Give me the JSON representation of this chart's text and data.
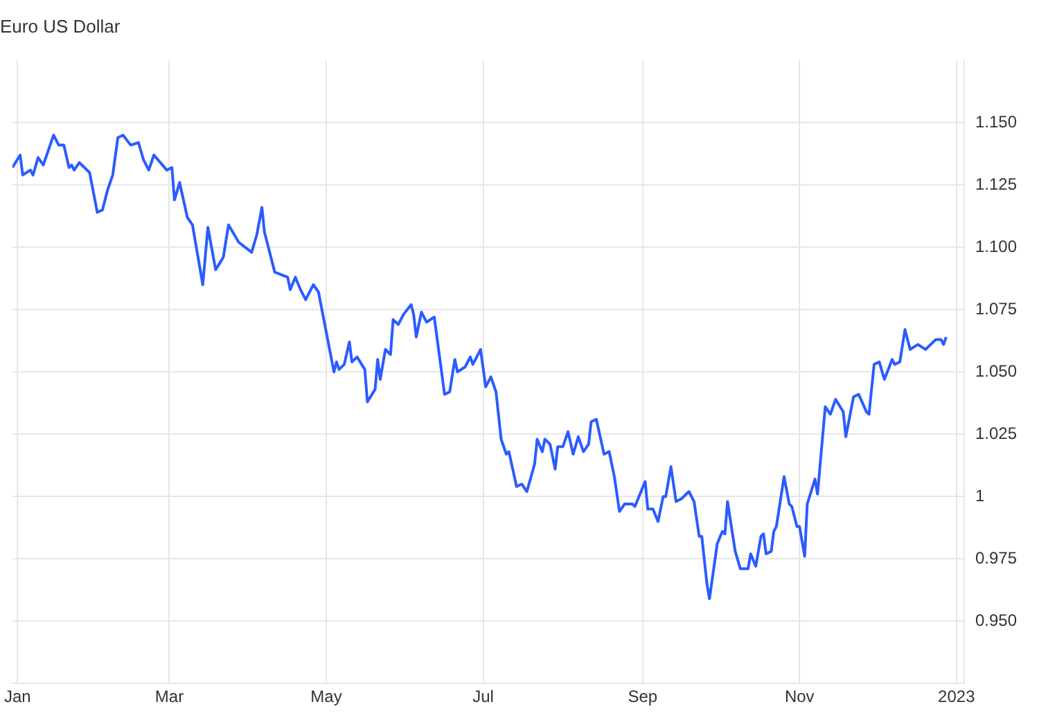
{
  "chart_data": {
    "type": "line",
    "title": "Euro US Dollar",
    "x": [
      "2021-12-30",
      "2022-01-02",
      "2022-01-03",
      "2022-01-06",
      "2022-01-07",
      "2022-01-09",
      "2022-01-11",
      "2022-01-15",
      "2022-01-17",
      "2022-01-19",
      "2022-01-21",
      "2022-01-22",
      "2022-01-23",
      "2022-01-25",
      "2022-01-29",
      "2022-02-01",
      "2022-02-03",
      "2022-02-05",
      "2022-02-07",
      "2022-02-09",
      "2022-02-11",
      "2022-02-14",
      "2022-02-17",
      "2022-02-19",
      "2022-02-21",
      "2022-02-23",
      "2022-02-28",
      "2022-03-02",
      "2022-03-03",
      "2022-03-05",
      "2022-03-08",
      "2022-03-10",
      "2022-03-14",
      "2022-03-16",
      "2022-03-19",
      "2022-03-22",
      "2022-03-24",
      "2022-03-28",
      "2022-04-02",
      "2022-04-04",
      "2022-04-06",
      "2022-04-07",
      "2022-04-11",
      "2022-04-16",
      "2022-04-17",
      "2022-04-19",
      "2022-04-21",
      "2022-04-23",
      "2022-04-26",
      "2022-04-28",
      "2022-05-04",
      "2022-05-05",
      "2022-05-06",
      "2022-05-08",
      "2022-05-10",
      "2022-05-11",
      "2022-05-13",
      "2022-05-16",
      "2022-05-17",
      "2022-05-20",
      "2022-05-21",
      "2022-05-22",
      "2022-05-24",
      "2022-05-26",
      "2022-05-27",
      "2022-05-29",
      "2022-05-31",
      "2022-06-03",
      "2022-06-04",
      "2022-06-05",
      "2022-06-07",
      "2022-06-09",
      "2022-06-12",
      "2022-06-16",
      "2022-06-18",
      "2022-06-20",
      "2022-06-21",
      "2022-06-24",
      "2022-06-26",
      "2022-06-27",
      "2022-06-30",
      "2022-07-02",
      "2022-07-04",
      "2022-07-06",
      "2022-07-08",
      "2022-07-10",
      "2022-07-11",
      "2022-07-14",
      "2022-07-16",
      "2022-07-18",
      "2022-07-21",
      "2022-07-22",
      "2022-07-24",
      "2022-07-25",
      "2022-07-27",
      "2022-07-29",
      "2022-07-30",
      "2022-08-01",
      "2022-08-03",
      "2022-08-05",
      "2022-08-07",
      "2022-08-09",
      "2022-08-11",
      "2022-08-12",
      "2022-08-14",
      "2022-08-17",
      "2022-08-19",
      "2022-08-21",
      "2022-08-23",
      "2022-08-25",
      "2022-08-28",
      "2022-08-29",
      "2022-09-02",
      "2022-09-03",
      "2022-09-05",
      "2022-09-07",
      "2022-09-09",
      "2022-09-10",
      "2022-09-12",
      "2022-09-14",
      "2022-09-16",
      "2022-09-19",
      "2022-09-21",
      "2022-09-23",
      "2022-09-24",
      "2022-09-26",
      "2022-09-27",
      "2022-09-30",
      "2022-10-02",
      "2022-10-03",
      "2022-10-04",
      "2022-10-07",
      "2022-10-09",
      "2022-10-12",
      "2022-10-13",
      "2022-10-15",
      "2022-10-17",
      "2022-10-18",
      "2022-10-19",
      "2022-10-21",
      "2022-10-22",
      "2022-10-23",
      "2022-10-26",
      "2022-10-28",
      "2022-10-29",
      "2022-10-31",
      "2022-11-01",
      "2022-11-03",
      "2022-11-04",
      "2022-11-07",
      "2022-11-08",
      "2022-11-11",
      "2022-11-13",
      "2022-11-15",
      "2022-11-18",
      "2022-11-19",
      "2022-11-22",
      "2022-11-24",
      "2022-11-27",
      "2022-11-28",
      "2022-11-30",
      "2022-12-02",
      "2022-12-04",
      "2022-12-07",
      "2022-12-08",
      "2022-12-10",
      "2022-12-12",
      "2022-12-14",
      "2022-12-17",
      "2022-12-20",
      "2022-12-24",
      "2022-12-26",
      "2022-12-27",
      "2022-12-28"
    ],
    "series": [
      {
        "color": "#2b5cff",
        "values": [
          1.132,
          1.137,
          1.129,
          1.131,
          1.129,
          1.136,
          1.133,
          1.145,
          1.141,
          1.141,
          1.132,
          1.133,
          1.131,
          1.134,
          1.13,
          1.114,
          1.115,
          1.123,
          1.129,
          1.144,
          1.145,
          1.141,
          1.142,
          1.135,
          1.131,
          1.137,
          1.131,
          1.132,
          1.119,
          1.126,
          1.112,
          1.109,
          1.085,
          1.108,
          1.091,
          1.096,
          1.109,
          1.102,
          1.098,
          1.105,
          1.116,
          1.106,
          1.09,
          1.088,
          1.083,
          1.088,
          1.083,
          1.079,
          1.085,
          1.082,
          1.05,
          1.054,
          1.051,
          1.053,
          1.062,
          1.054,
          1.056,
          1.051,
          1.038,
          1.043,
          1.055,
          1.047,
          1.059,
          1.057,
          1.071,
          1.069,
          1.073,
          1.077,
          1.073,
          1.064,
          1.074,
          1.07,
          1.072,
          1.041,
          1.042,
          1.055,
          1.05,
          1.052,
          1.056,
          1.053,
          1.059,
          1.044,
          1.048,
          1.042,
          1.023,
          1.017,
          1.018,
          1.004,
          1.005,
          1.002,
          1.013,
          1.023,
          1.018,
          1.023,
          1.021,
          1.011,
          1.02,
          1.02,
          1.026,
          1.017,
          1.024,
          1.018,
          1.021,
          1.03,
          1.031,
          1.017,
          1.018,
          1.008,
          0.994,
          0.997,
          0.997,
          0.996,
          1.006,
          0.995,
          0.995,
          0.99,
          1.0,
          1.0,
          1.012,
          0.998,
          0.999,
          1.002,
          0.998,
          0.984,
          0.984,
          0.965,
          0.959,
          0.981,
          0.986,
          0.985,
          0.998,
          0.978,
          0.971,
          0.971,
          0.977,
          0.972,
          0.984,
          0.985,
          0.977,
          0.978,
          0.986,
          0.988,
          1.008,
          0.997,
          0.996,
          0.988,
          0.988,
          0.976,
          0.997,
          1.007,
          1.001,
          1.036,
          1.033,
          1.039,
          1.034,
          1.024,
          1.04,
          1.041,
          1.034,
          1.033,
          1.053,
          1.054,
          1.047,
          1.055,
          1.053,
          1.054,
          1.067,
          1.059,
          1.061,
          1.059,
          1.063,
          1.063,
          1.061,
          1.064
        ]
      }
    ],
    "xlim": [
      "2021-12-30",
      "2023-01-04"
    ],
    "xticks": [
      {
        "value": "2022-01-01",
        "label": "Jan"
      },
      {
        "value": "2022-03-01",
        "label": "Mar"
      },
      {
        "value": "2022-05-01",
        "label": "May"
      },
      {
        "value": "2022-07-01",
        "label": "Jul"
      },
      {
        "value": "2022-09-01",
        "label": "Sep"
      },
      {
        "value": "2022-11-01",
        "label": "Nov"
      },
      {
        "value": "2023-01-01",
        "label": "2023"
      }
    ],
    "ylim": [
      0.925,
      1.175
    ],
    "yticks": [
      {
        "value": 0.95,
        "label": "0.950"
      },
      0.975,
      1,
      1.025,
      {
        "value": 1.05,
        "label": "1.050"
      },
      1.075,
      {
        "value": 1.1,
        "label": "1.100"
      },
      1.125,
      {
        "value": 1.15,
        "label": "1.150"
      }
    ],
    "grid": true,
    "legend": false,
    "marker": "none",
    "line_style": "solid"
  }
}
